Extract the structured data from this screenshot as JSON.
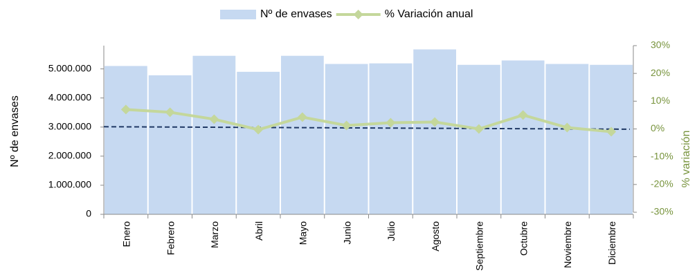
{
  "chart_data": {
    "type": "bar-line",
    "categories": [
      "Enero",
      "Febrero",
      "Marzo",
      "Abril",
      "Mayo",
      "Junio",
      "Julio",
      "Agosto",
      "Septiembre",
      "Octubre",
      "Noviembre",
      "Diciembre"
    ],
    "series": [
      {
        "name": "Nº de envases",
        "type": "bar",
        "color": "#c6d9f1",
        "values": [
          5100000,
          4780000,
          5450000,
          4900000,
          5450000,
          5170000,
          5190000,
          5670000,
          5140000,
          5290000,
          5170000,
          5140000
        ]
      },
      {
        "name": "% Variación anual",
        "type": "line",
        "axis": "y2",
        "color": "#c4d79b",
        "values": [
          7,
          6,
          3.5,
          -0.25,
          4.25,
          1.25,
          2.25,
          2.5,
          0,
          5,
          0.5,
          -1
        ]
      }
    ],
    "trendline": {
      "axis": "y2",
      "start": 0.8,
      "end": -0.1,
      "color": "#1f3864"
    },
    "ylabel": "Nº de envases",
    "y2label": "% variación",
    "ylim": [
      0,
      5800000
    ],
    "yticks": [
      0,
      {
        "value": 1000000,
        "label": "1.000.000"
      },
      {
        "value": 2000000,
        "label": "2.000.000"
      },
      {
        "value": 3000000,
        "label": "3.000.000"
      },
      {
        "value": 4000000,
        "label": "4.000.000"
      },
      {
        "value": 5000000,
        "label": "5.000.000"
      }
    ],
    "y2lim": [
      -30,
      30
    ],
    "y2ticks": [
      {
        "value": -30,
        "label": "-30%"
      },
      {
        "value": -20,
        "label": "-20%"
      },
      {
        "value": -10,
        "label": "-10%"
      },
      {
        "value": 0,
        "label": "0%"
      },
      {
        "value": 10,
        "label": "10%"
      },
      {
        "value": 20,
        "label": "20%"
      },
      {
        "value": 30,
        "label": "30%"
      }
    ],
    "y2color": "#77933c",
    "legend": "top"
  }
}
